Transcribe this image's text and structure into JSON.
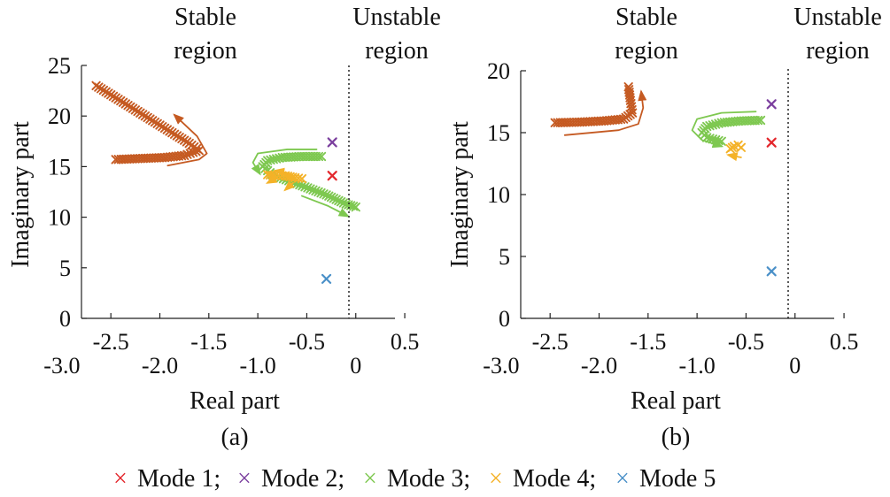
{
  "legend": {
    "items": [
      {
        "label": "Mode 1;",
        "color": "#e3262b"
      },
      {
        "label": "Mode 2;",
        "color": "#7b3f9e"
      },
      {
        "label": "Mode 3;",
        "color": "#7ec850"
      },
      {
        "label": "Mode 4;",
        "color": "#f4b228"
      },
      {
        "label": "Mode 5",
        "color": "#4a90c8"
      }
    ]
  },
  "chart_data": [
    {
      "type": "scatter",
      "caption": "(a)",
      "xlabel": "Real part",
      "ylabel": "Imaginary part",
      "xlim": [
        -2.8,
        0.4
      ],
      "ylim": [
        0,
        25
      ],
      "x_ticks_upper": [
        "-2.5",
        "-1.5",
        "-0.5",
        "0.5"
      ],
      "x_ticks_lower": [
        "-3.0",
        "-2.0",
        "-1.0",
        "0"
      ],
      "y_ticks": [
        "0",
        "5",
        "10",
        "15",
        "20",
        "25"
      ],
      "region_labels": {
        "stable": [
          "Stable",
          "region"
        ],
        "unstable": [
          "Unstable",
          "region"
        ]
      },
      "stability_boundary_x": 0,
      "series": [
        {
          "name": "Mode 1",
          "color": "#e3262b",
          "points": [
            [
              -0.24,
              14.1
            ]
          ]
        },
        {
          "name": "Mode 2",
          "color": "#7b3f9e",
          "points": [
            [
              -0.24,
              17.4
            ]
          ]
        },
        {
          "name": "Mode 3",
          "color": "#7ec850",
          "polyline": [
            [
              -0.35,
              16.0
            ],
            [
              -0.55,
              16.0
            ],
            [
              -0.75,
              15.9
            ],
            [
              -0.9,
              15.6
            ],
            [
              -0.95,
              15.0
            ],
            [
              -0.85,
              14.2
            ],
            [
              -0.6,
              13.3
            ],
            [
              -0.3,
              12.2
            ],
            [
              -0.1,
              11.3
            ],
            [
              0.0,
              11.0
            ]
          ]
        },
        {
          "name": "Mode 4",
          "color": "#f4b228",
          "polyline": [
            [
              -0.55,
              13.8
            ],
            [
              -0.62,
              13.9
            ],
            [
              -0.72,
              14.1
            ],
            [
              -0.82,
              14.1
            ],
            [
              -0.9,
              14.2
            ]
          ]
        },
        {
          "name": "Mode 5",
          "color": "#4a90c8",
          "points": [
            [
              -0.3,
              3.9
            ]
          ]
        },
        {
          "name": "",
          "color": "#c55a22",
          "polyline": [
            [
              -2.45,
              15.7
            ],
            [
              -2.2,
              15.8
            ],
            [
              -1.95,
              15.9
            ],
            [
              -1.75,
              16.1
            ],
            [
              -1.6,
              16.6
            ],
            [
              -1.7,
              17.3
            ],
            [
              -1.9,
              18.5
            ],
            [
              -2.15,
              20.0
            ],
            [
              -2.4,
              21.5
            ],
            [
              -2.65,
              23.0
            ]
          ]
        }
      ],
      "arrows": [
        {
          "color": "#c55a22",
          "path": [
            [
              -1.92,
              15.1
            ],
            [
              -1.6,
              15.7
            ],
            [
              -1.52,
              16.3
            ],
            [
              -1.62,
              18.0
            ],
            [
              -1.85,
              20.1
            ]
          ]
        },
        {
          "color": "#7ec850",
          "path": [
            [
              -0.4,
              16.7
            ],
            [
              -0.7,
              16.7
            ],
            [
              -1.0,
              16.3
            ],
            [
              -1.05,
              15.4
            ],
            [
              -0.98,
              14.3
            ]
          ]
        },
        {
          "color": "#7ec850",
          "path": [
            [
              -0.55,
              12.1
            ],
            [
              -0.28,
              11.1
            ],
            [
              -0.08,
              10.1
            ]
          ]
        },
        {
          "color": "#f4b228",
          "path": [
            [
              -0.82,
              13.8
            ],
            [
              -0.9,
              13.4
            ]
          ]
        },
        {
          "color": "#f4b228",
          "path": [
            [
              -0.64,
              13.4
            ],
            [
              -0.72,
              12.7
            ]
          ]
        },
        {
          "color": "#f4b228",
          "path": [
            [
              -0.7,
              14.4
            ],
            [
              -0.82,
              14.6
            ]
          ]
        }
      ]
    },
    {
      "type": "scatter",
      "caption": "(b)",
      "xlabel": "Real part",
      "ylabel": "Imaginary part",
      "xlim": [
        -2.8,
        0.4
      ],
      "ylim": [
        0,
        20
      ],
      "x_ticks_upper": [
        "-2.5",
        "-1.5",
        "-0.5",
        "0.5"
      ],
      "x_ticks_lower": [
        "-3.0",
        "-2.0",
        "-1.0",
        "0"
      ],
      "y_ticks": [
        "0",
        "5",
        "10",
        "15",
        "20"
      ],
      "region_labels": {
        "stable": [
          "Stable",
          "region"
        ],
        "unstable": [
          "Unstable",
          "region"
        ]
      },
      "stability_boundary_x": 0,
      "series": [
        {
          "name": "Mode 1",
          "color": "#e3262b",
          "points": [
            [
              -0.24,
              14.2
            ]
          ]
        },
        {
          "name": "Mode 2",
          "color": "#7b3f9e",
          "points": [
            [
              -0.24,
              17.3
            ]
          ]
        },
        {
          "name": "Mode 3",
          "color": "#7ec850",
          "polyline": [
            [
              -0.35,
              16.0
            ],
            [
              -0.55,
              15.95
            ],
            [
              -0.75,
              15.8
            ],
            [
              -0.9,
              15.5
            ],
            [
              -0.95,
              15.0
            ],
            [
              -0.9,
              14.6
            ],
            [
              -0.75,
              14.3
            ]
          ]
        },
        {
          "name": "Mode 4",
          "color": "#f4b228",
          "polyline": [
            [
              -0.66,
              13.7
            ],
            [
              -0.62,
              13.9
            ],
            [
              -0.58,
              14.0
            ],
            [
              -0.55,
              13.8
            ]
          ]
        },
        {
          "name": "Mode 5",
          "color": "#4a90c8",
          "points": [
            [
              -0.24,
              3.8
            ]
          ]
        },
        {
          "name": "",
          "color": "#c55a22",
          "polyline": [
            [
              -2.45,
              15.8
            ],
            [
              -2.2,
              15.85
            ],
            [
              -1.95,
              15.95
            ],
            [
              -1.75,
              16.1
            ],
            [
              -1.66,
              16.6
            ],
            [
              -1.68,
              17.6
            ],
            [
              -1.7,
              18.7
            ]
          ]
        }
      ],
      "arrows": [
        {
          "color": "#c55a22",
          "path": [
            [
              -2.35,
              14.8
            ],
            [
              -1.8,
              15.2
            ],
            [
              -1.6,
              15.7
            ],
            [
              -1.55,
              17.0
            ],
            [
              -1.57,
              18.3
            ]
          ]
        },
        {
          "color": "#7ec850",
          "path": [
            [
              -0.4,
              16.7
            ],
            [
              -0.75,
              16.6
            ],
            [
              -1.0,
              16.1
            ],
            [
              -1.05,
              15.2
            ],
            [
              -0.95,
              14.4
            ],
            [
              -0.75,
              13.9
            ]
          ]
        },
        {
          "color": "#f4b228",
          "path": [
            [
              -0.55,
              13.0
            ],
            [
              -0.68,
              13.2
            ]
          ]
        }
      ]
    }
  ]
}
